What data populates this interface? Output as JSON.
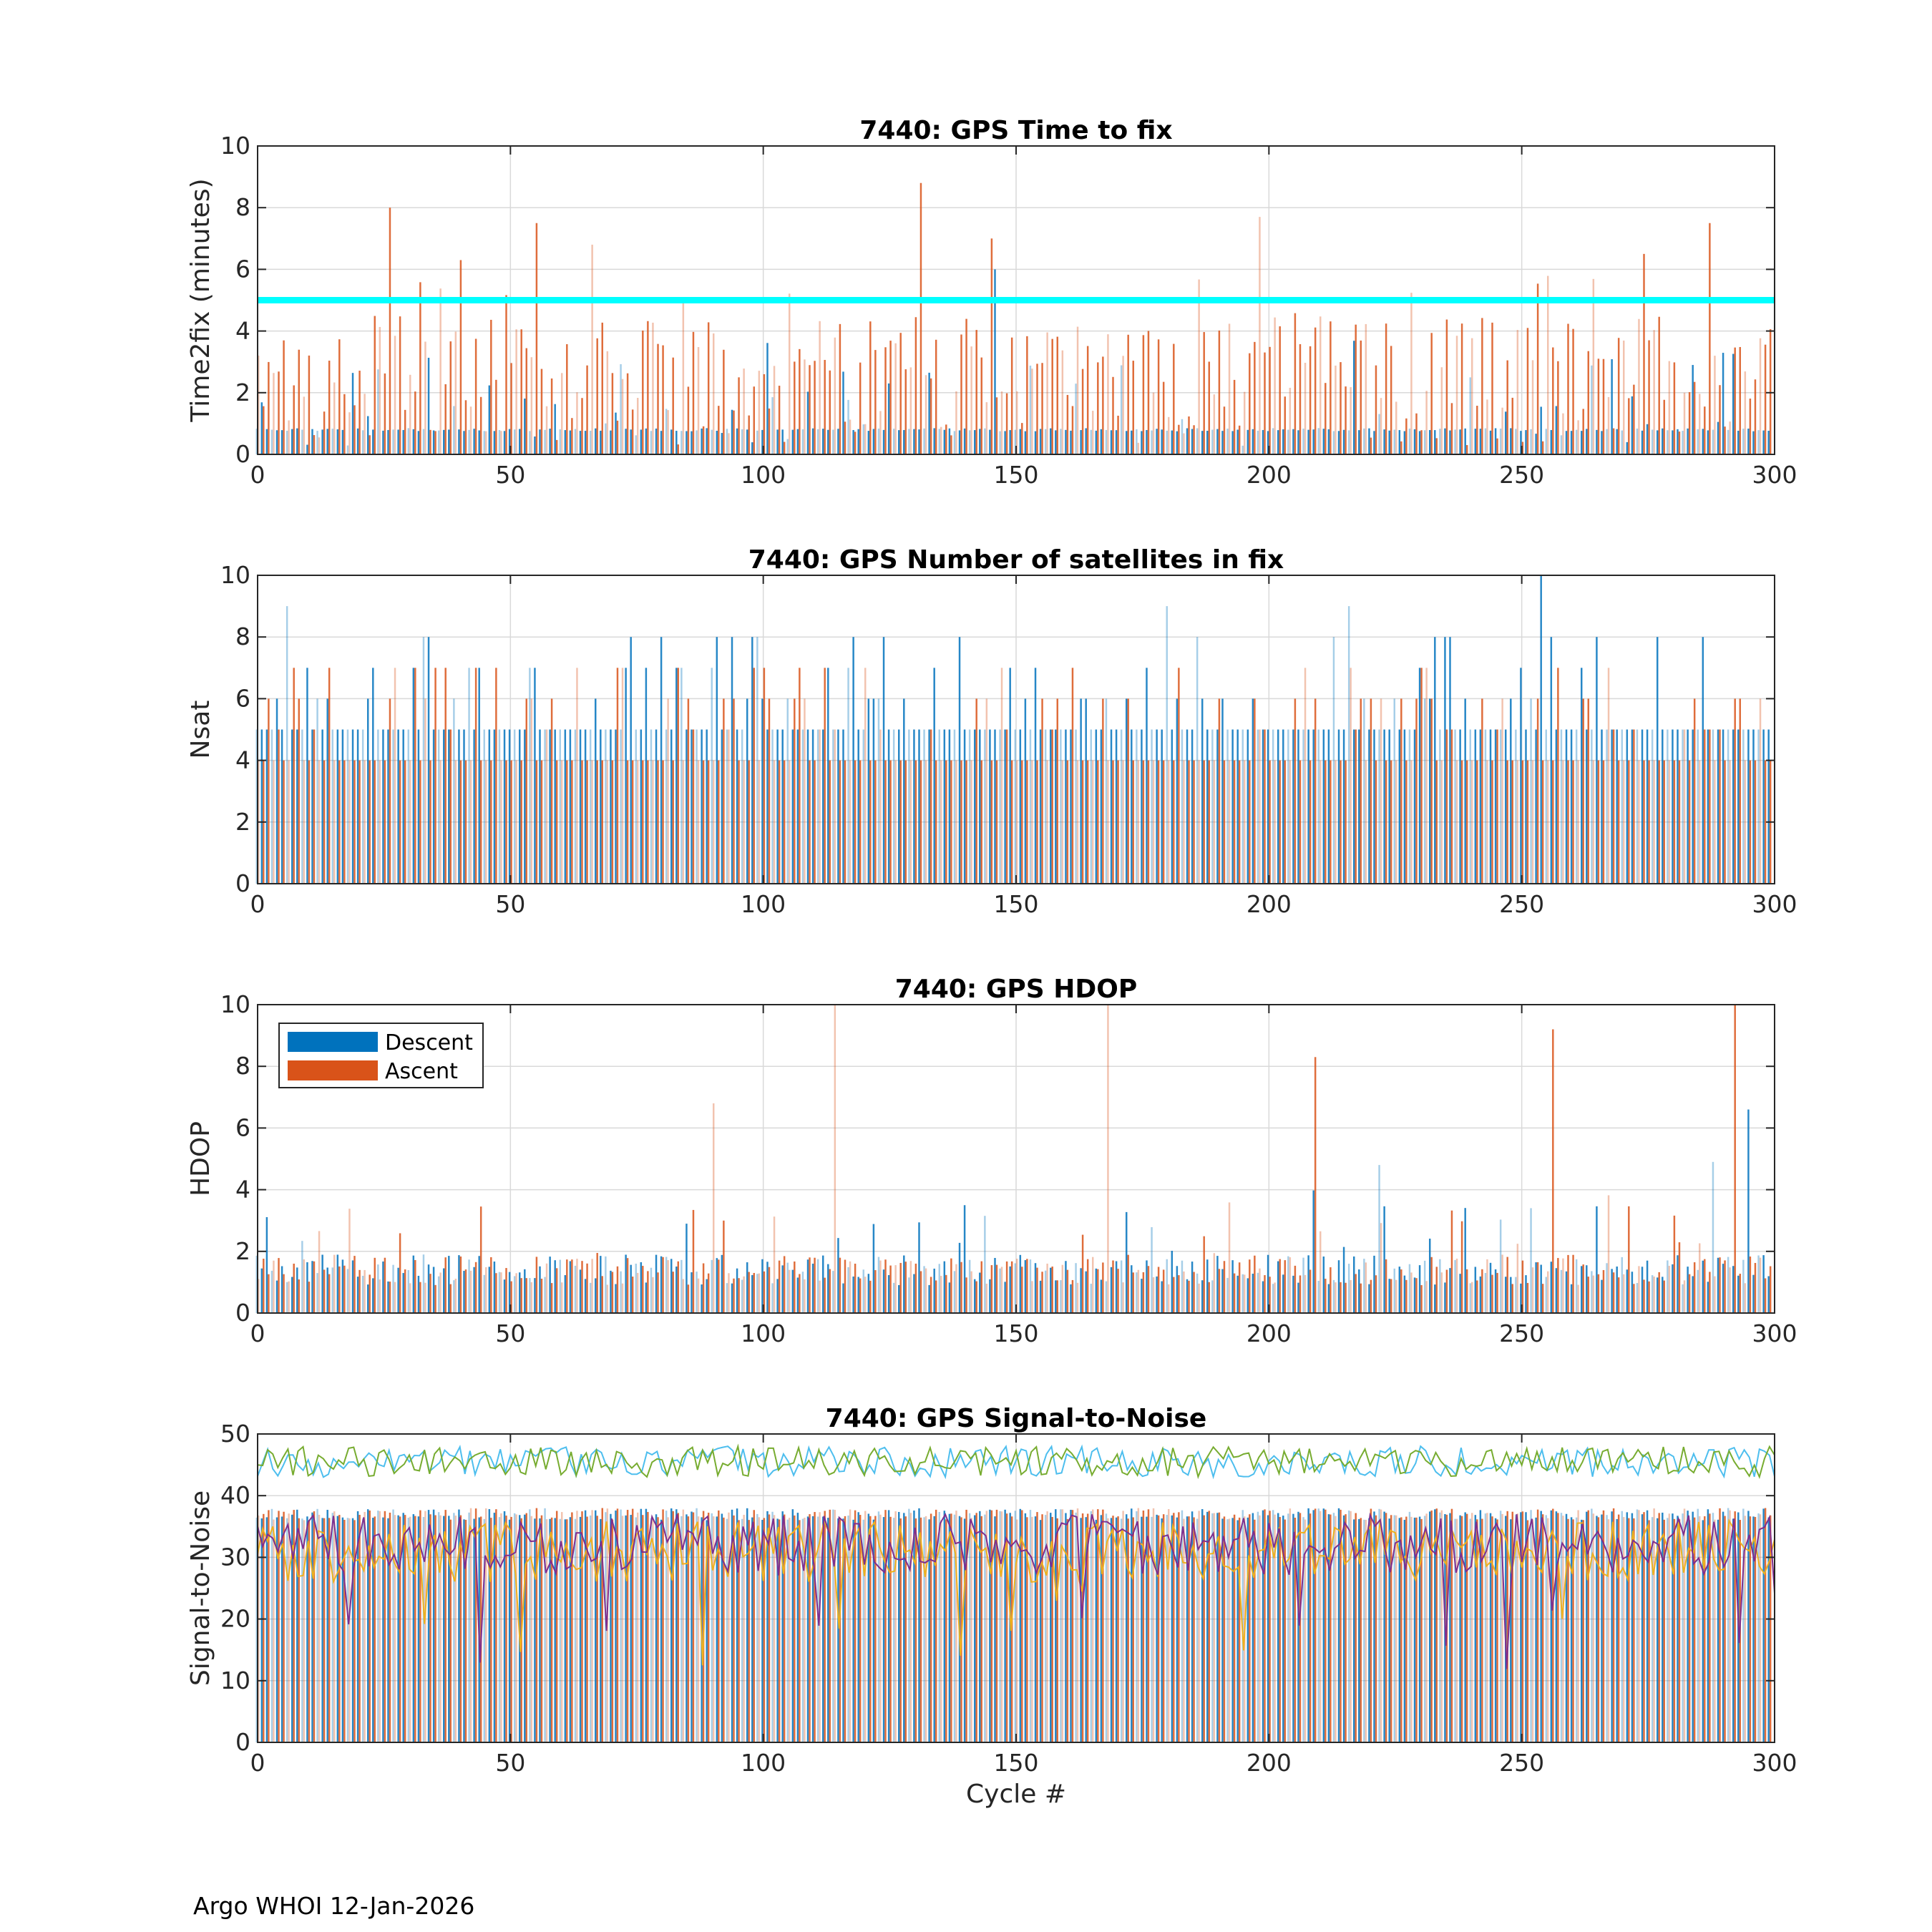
{
  "footer": "Argo WHOI 12-Jan-2026",
  "colors": {
    "descent": "#0072BD",
    "ascent": "#D95319",
    "threshold": "#00FFFF",
    "snr1": "#4DBEEE",
    "snr2": "#77AC30",
    "snr3": "#EDB120",
    "snr4": "#7E2F8E",
    "grid": "#D9D9D9"
  },
  "chart_data": [
    {
      "type": "bar",
      "title": "7440: GPS Time to fix",
      "xlabel": "",
      "ylabel": "Time2fix (minutes)",
      "xlim": [
        0,
        300
      ],
      "ylim": [
        0,
        10
      ],
      "xticks": [
        0,
        50,
        100,
        150,
        200,
        250,
        300
      ],
      "yticks": [
        0,
        2,
        4,
        6,
        8,
        10
      ],
      "reference_line": {
        "y": 5,
        "color": "#00FFFF"
      },
      "series": [
        {
          "name": "Descent",
          "typical": 0.8,
          "range": [
            0.1,
            6.0
          ]
        },
        {
          "name": "Ascent",
          "typical": 2.5,
          "range": [
            0.2,
            8.8
          ]
        }
      ],
      "annotated_peaks": [
        {
          "x": 26,
          "series": "Ascent",
          "y": 8.0
        },
        {
          "x": 40,
          "series": "Ascent",
          "y": 6.3
        },
        {
          "x": 55,
          "series": "Ascent",
          "y": 7.5
        },
        {
          "x": 66,
          "series": "Ascent",
          "y": 6.8
        },
        {
          "x": 131,
          "series": "Ascent",
          "y": 8.8
        },
        {
          "x": 145,
          "series": "Ascent",
          "y": 7.0
        },
        {
          "x": 146,
          "series": "Descent",
          "y": 6.0
        },
        {
          "x": 198,
          "series": "Ascent",
          "y": 7.7
        },
        {
          "x": 274,
          "series": "Ascent",
          "y": 6.5
        },
        {
          "x": 287,
          "series": "Ascent",
          "y": 7.5
        }
      ]
    },
    {
      "type": "bar",
      "title": "7440: GPS Number of satellites in fix",
      "xlabel": "",
      "ylabel": "Nsat",
      "xlim": [
        0,
        300
      ],
      "ylim": [
        0,
        10
      ],
      "xticks": [
        0,
        50,
        100,
        150,
        200,
        250,
        300
      ],
      "yticks": [
        0,
        2,
        4,
        6,
        8,
        10
      ],
      "series": [
        {
          "name": "Descent",
          "typical": 5,
          "range": [
            3,
            10
          ]
        },
        {
          "name": "Ascent",
          "typical": 4,
          "range": [
            3,
            8
          ]
        }
      ],
      "annotated_peaks": [
        {
          "x": 6,
          "series": "Descent",
          "y": 9
        },
        {
          "x": 180,
          "series": "Descent",
          "y": 9
        },
        {
          "x": 216,
          "series": "Descent",
          "y": 9
        },
        {
          "x": 254,
          "series": "Descent",
          "y": 10
        }
      ]
    },
    {
      "type": "bar",
      "title": "7440: GPS HDOP",
      "xlabel": "",
      "ylabel": "HDOP",
      "xlim": [
        0,
        300
      ],
      "ylim": [
        0,
        10
      ],
      "xticks": [
        0,
        50,
        100,
        150,
        200,
        250,
        300
      ],
      "yticks": [
        0,
        2,
        4,
        6,
        8,
        10
      ],
      "legend": {
        "location": "top-left",
        "entries": [
          "Descent",
          "Ascent"
        ]
      },
      "series": [
        {
          "name": "Descent",
          "typical": 1.2,
          "range": [
            0.8,
            6.6
          ]
        },
        {
          "name": "Ascent",
          "typical": 1.3,
          "range": [
            0.8,
            10
          ]
        }
      ],
      "annotated_peaks": [
        {
          "x": 90,
          "series": "Ascent",
          "y": 6.8
        },
        {
          "x": 114,
          "series": "Ascent",
          "y": 10
        },
        {
          "x": 168,
          "series": "Ascent",
          "y": 10
        },
        {
          "x": 209,
          "series": "Ascent",
          "y": 8.3
        },
        {
          "x": 222,
          "series": "Descent",
          "y": 4.8
        },
        {
          "x": 256,
          "series": "Ascent",
          "y": 9.2
        },
        {
          "x": 288,
          "series": "Descent",
          "y": 4.9
        },
        {
          "x": 292,
          "series": "Ascent",
          "y": 10
        },
        {
          "x": 295,
          "series": "Descent",
          "y": 6.6
        }
      ]
    },
    {
      "type": "line",
      "title": "7440: GPS Signal-to-Noise",
      "xlabel": "Cycle #",
      "ylabel": "Signal-to-Noise",
      "xlim": [
        0,
        300
      ],
      "ylim": [
        0,
        50
      ],
      "xticks": [
        0,
        50,
        100,
        150,
        200,
        250,
        300
      ],
      "yticks": [
        0,
        10,
        20,
        30,
        40,
        50
      ],
      "bars": [
        {
          "name": "Descent",
          "typical": 37
        },
        {
          "name": "Ascent",
          "typical": 37
        }
      ],
      "series": [
        {
          "name": "SNR line 1",
          "mean": 45.5,
          "spread": 2.5
        },
        {
          "name": "SNR line 2",
          "mean": 45.5,
          "spread": 2.5
        },
        {
          "name": "SNR line 3",
          "mean": 31,
          "spread": 5
        },
        {
          "name": "SNR line 4",
          "mean": 32,
          "spread": 5
        }
      ]
    }
  ]
}
